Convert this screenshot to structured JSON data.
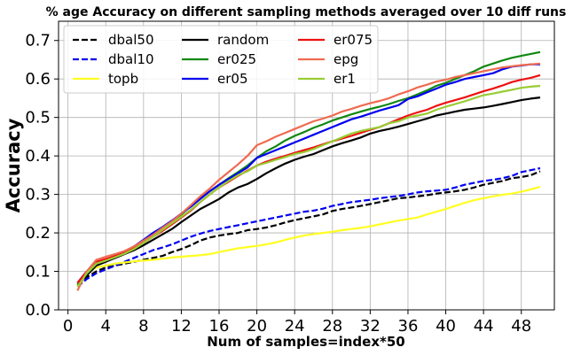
{
  "chart_data": {
    "type": "line",
    "title": "% age Accuracy on different sampling methods averaged over 10 diff runs",
    "xlabel": "Num of samples=index*50",
    "ylabel": "Accuracy",
    "xlim": [
      -1,
      51.5
    ],
    "ylim": [
      0,
      0.75
    ],
    "xticks": [
      0,
      4,
      8,
      12,
      16,
      20,
      24,
      28,
      32,
      36,
      40,
      44,
      48
    ],
    "yticks": [
      0.0,
      0.1,
      0.2,
      0.3,
      0.4,
      0.5,
      0.6,
      0.7
    ],
    "grid": true,
    "legend_placement": "top-left",
    "legend_columns": 3,
    "x": [
      1,
      2,
      3,
      4,
      5,
      6,
      7,
      8,
      9,
      10,
      11,
      12,
      13,
      14,
      15,
      16,
      17,
      18,
      19,
      20,
      21,
      22,
      23,
      24,
      25,
      26,
      27,
      28,
      29,
      30,
      31,
      32,
      33,
      34,
      35,
      36,
      37,
      38,
      39,
      40,
      41,
      42,
      43,
      44,
      45,
      46,
      47,
      48,
      49,
      50
    ],
    "series": [
      {
        "name": "dbal50",
        "color": "#000000",
        "dash": "dashed",
        "values": [
          0.065,
          0.085,
          0.1,
          0.11,
          0.115,
          0.12,
          0.125,
          0.13,
          0.135,
          0.14,
          0.15,
          0.158,
          0.168,
          0.18,
          0.188,
          0.193,
          0.197,
          0.2,
          0.207,
          0.21,
          0.214,
          0.22,
          0.227,
          0.233,
          0.238,
          0.243,
          0.248,
          0.257,
          0.262,
          0.266,
          0.27,
          0.275,
          0.28,
          0.285,
          0.29,
          0.292,
          0.295,
          0.298,
          0.302,
          0.305,
          0.308,
          0.312,
          0.318,
          0.325,
          0.33,
          0.335,
          0.342,
          0.345,
          0.35,
          0.36
        ]
      },
      {
        "name": "dbal10",
        "color": "#0000ee",
        "dash": "dashed",
        "values": [
          0.06,
          0.08,
          0.095,
          0.105,
          0.115,
          0.125,
          0.135,
          0.145,
          0.155,
          0.162,
          0.17,
          0.18,
          0.19,
          0.198,
          0.205,
          0.21,
          0.215,
          0.22,
          0.225,
          0.23,
          0.235,
          0.24,
          0.245,
          0.25,
          0.255,
          0.258,
          0.263,
          0.27,
          0.275,
          0.28,
          0.283,
          0.286,
          0.29,
          0.293,
          0.296,
          0.3,
          0.305,
          0.308,
          0.31,
          0.312,
          0.318,
          0.325,
          0.33,
          0.335,
          0.338,
          0.342,
          0.348,
          0.358,
          0.363,
          0.368
        ]
      },
      {
        "name": "topb",
        "color": "#ffff22",
        "dash": "solid",
        "values": [
          0.06,
          0.095,
          0.11,
          0.115,
          0.12,
          0.123,
          0.126,
          0.128,
          0.13,
          0.133,
          0.136,
          0.138,
          0.14,
          0.142,
          0.145,
          0.15,
          0.155,
          0.16,
          0.163,
          0.166,
          0.17,
          0.175,
          0.182,
          0.188,
          0.193,
          0.197,
          0.2,
          0.203,
          0.207,
          0.21,
          0.213,
          0.217,
          0.222,
          0.227,
          0.232,
          0.236,
          0.24,
          0.248,
          0.255,
          0.262,
          0.27,
          0.278,
          0.285,
          0.29,
          0.295,
          0.299,
          0.302,
          0.307,
          0.313,
          0.32
        ]
      },
      {
        "name": "random",
        "color": "#000000",
        "dash": "solid",
        "values": [
          0.065,
          0.09,
          0.115,
          0.125,
          0.135,
          0.145,
          0.155,
          0.168,
          0.182,
          0.196,
          0.21,
          0.228,
          0.245,
          0.262,
          0.275,
          0.288,
          0.305,
          0.318,
          0.327,
          0.34,
          0.355,
          0.368,
          0.38,
          0.39,
          0.398,
          0.405,
          0.415,
          0.425,
          0.433,
          0.44,
          0.448,
          0.458,
          0.465,
          0.47,
          0.476,
          0.483,
          0.49,
          0.497,
          0.505,
          0.51,
          0.515,
          0.52,
          0.523,
          0.526,
          0.53,
          0.535,
          0.54,
          0.545,
          0.549,
          0.552
        ]
      },
      {
        "name": "er025",
        "color": "#118811",
        "dash": "solid",
        "values": [
          0.065,
          0.095,
          0.12,
          0.13,
          0.14,
          0.15,
          0.162,
          0.178,
          0.195,
          0.212,
          0.228,
          0.248,
          0.27,
          0.29,
          0.308,
          0.325,
          0.342,
          0.358,
          0.375,
          0.395,
          0.412,
          0.425,
          0.44,
          0.452,
          0.462,
          0.473,
          0.482,
          0.492,
          0.5,
          0.508,
          0.515,
          0.522,
          0.528,
          0.535,
          0.543,
          0.55,
          0.56,
          0.57,
          0.582,
          0.59,
          0.6,
          0.61,
          0.62,
          0.632,
          0.64,
          0.648,
          0.655,
          0.66,
          0.665,
          0.67
        ]
      },
      {
        "name": "er05",
        "color": "#0000ee",
        "dash": "solid",
        "values": [
          0.07,
          0.1,
          0.12,
          0.13,
          0.14,
          0.15,
          0.165,
          0.182,
          0.2,
          0.215,
          0.232,
          0.25,
          0.268,
          0.288,
          0.308,
          0.325,
          0.34,
          0.355,
          0.37,
          0.395,
          0.405,
          0.415,
          0.425,
          0.435,
          0.445,
          0.455,
          0.465,
          0.475,
          0.485,
          0.495,
          0.502,
          0.51,
          0.518,
          0.525,
          0.532,
          0.548,
          0.555,
          0.565,
          0.575,
          0.585,
          0.592,
          0.6,
          0.605,
          0.61,
          0.615,
          0.625,
          0.632,
          0.635,
          0.638,
          0.638
        ]
      },
      {
        "name": "er075",
        "color": "#ee1111",
        "dash": "solid",
        "values": [
          0.07,
          0.1,
          0.125,
          0.132,
          0.14,
          0.148,
          0.16,
          0.175,
          0.19,
          0.205,
          0.222,
          0.24,
          0.258,
          0.28,
          0.3,
          0.318,
          0.333,
          0.348,
          0.362,
          0.375,
          0.385,
          0.393,
          0.4,
          0.408,
          0.415,
          0.422,
          0.43,
          0.438,
          0.445,
          0.452,
          0.46,
          0.468,
          0.475,
          0.485,
          0.495,
          0.505,
          0.513,
          0.52,
          0.53,
          0.538,
          0.545,
          0.552,
          0.56,
          0.568,
          0.575,
          0.583,
          0.592,
          0.598,
          0.603,
          0.61
        ]
      },
      {
        "name": "epg",
        "color": "#f06a50",
        "dash": "solid",
        "values": [
          0.05,
          0.1,
          0.13,
          0.138,
          0.145,
          0.153,
          0.165,
          0.18,
          0.195,
          0.213,
          0.23,
          0.25,
          0.272,
          0.295,
          0.315,
          0.338,
          0.358,
          0.378,
          0.4,
          0.428,
          0.438,
          0.45,
          0.46,
          0.47,
          0.48,
          0.49,
          0.497,
          0.505,
          0.515,
          0.522,
          0.53,
          0.537,
          0.543,
          0.55,
          0.56,
          0.568,
          0.578,
          0.585,
          0.593,
          0.598,
          0.605,
          0.61,
          0.615,
          0.62,
          0.625,
          0.63,
          0.633,
          0.636,
          0.638,
          0.64
        ]
      },
      {
        "name": "er1",
        "color": "#99cc33",
        "dash": "solid",
        "values": [
          0.06,
          0.095,
          0.12,
          0.128,
          0.137,
          0.146,
          0.158,
          0.174,
          0.19,
          0.208,
          0.225,
          0.242,
          0.26,
          0.28,
          0.3,
          0.318,
          0.335,
          0.35,
          0.36,
          0.375,
          0.382,
          0.39,
          0.397,
          0.405,
          0.41,
          0.418,
          0.428,
          0.438,
          0.448,
          0.458,
          0.465,
          0.47,
          0.475,
          0.485,
          0.49,
          0.5,
          0.505,
          0.51,
          0.52,
          0.528,
          0.535,
          0.542,
          0.55,
          0.558,
          0.562,
          0.567,
          0.572,
          0.577,
          0.58,
          0.582
        ]
      }
    ]
  }
}
